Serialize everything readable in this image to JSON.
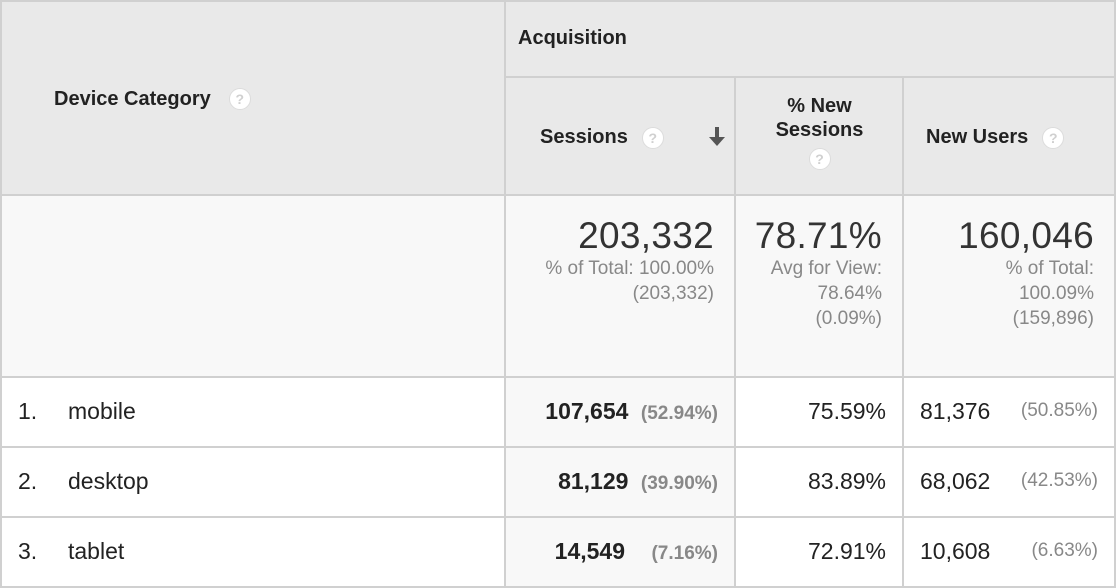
{
  "header": {
    "device_category": "Device Category",
    "group": "Acquisition",
    "sessions": "Sessions",
    "pct_new_sessions_line1": "% New",
    "pct_new_sessions_line2": "Sessions",
    "new_users": "New Users",
    "help_glyph": "?",
    "sort_glyph": "🡓"
  },
  "totals": {
    "sessions": {
      "value": "203,332",
      "line1": "% of Total: 100.00%",
      "line2": "(203,332)"
    },
    "pct_new_sessions": {
      "value": "78.71%",
      "line1": "Avg for View:",
      "line2": "78.64%",
      "line3": "(0.09%)"
    },
    "new_users": {
      "value": "160,046",
      "line1": "% of Total:",
      "line2": "100.09%",
      "line3": "(159,896)"
    }
  },
  "rows": [
    {
      "index": "1.",
      "device": "mobile",
      "sessions": "107,654",
      "sessions_pct": "(52.94%)",
      "pct_new": "75.59%",
      "new_users": "81,376",
      "new_users_pct": "(50.85%)"
    },
    {
      "index": "2.",
      "device": "desktop",
      "sessions": "81,129",
      "sessions_pct": "(39.90%)",
      "pct_new": "83.89%",
      "new_users": "68,062",
      "new_users_pct": "(42.53%)"
    },
    {
      "index": "3.",
      "device": "tablet",
      "sessions": "14,549",
      "sessions_pct": "(7.16%)",
      "pct_new": "72.91%",
      "new_users": "10,608",
      "new_users_pct": "(6.63%)"
    }
  ]
}
